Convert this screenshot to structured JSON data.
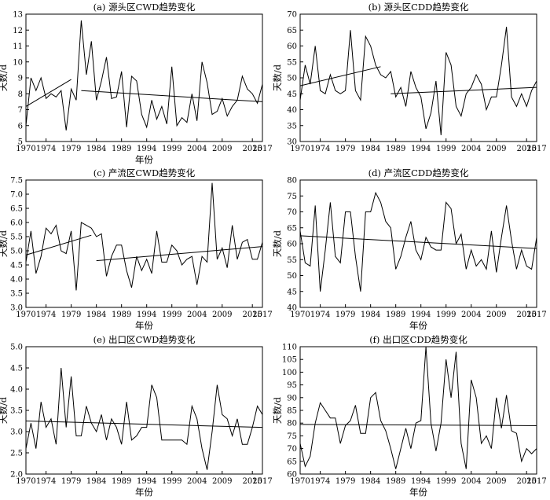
{
  "chart_data": [
    {
      "type": "line",
      "title": "(a) 源头区CWD趋势变化",
      "xlabel": "年份",
      "ylabel": "天数/d",
      "x_ticks": [
        "1970",
        "1974",
        "1979",
        "1984",
        "1989",
        "1994",
        "1999",
        "2004",
        "2009",
        "2015",
        "2017"
      ],
      "ylim": [
        5,
        13
      ],
      "y_ticks": [
        "5",
        "6",
        "7",
        "8",
        "9",
        "10",
        "11",
        "12",
        "13"
      ],
      "grid": false,
      "x": [
        1970,
        1971,
        1972,
        1973,
        1974,
        1975,
        1976,
        1977,
        1978,
        1979,
        1980,
        1981,
        1982,
        1983,
        1984,
        1985,
        1986,
        1987,
        1988,
        1989,
        1990,
        1991,
        1992,
        1993,
        1994,
        1995,
        1996,
        1997,
        1998,
        1999,
        2000,
        2001,
        2002,
        2003,
        2004,
        2005,
        2006,
        2007,
        2008,
        2009,
        2010,
        2011,
        2012,
        2013,
        2014,
        2015,
        2016,
        2017
      ],
      "values": [
        6.0,
        9.0,
        8.2,
        9.0,
        7.7,
        8.0,
        7.8,
        8.2,
        5.7,
        8.3,
        7.6,
        12.6,
        9.2,
        11.3,
        7.6,
        8.8,
        10.3,
        7.7,
        7.8,
        9.4,
        5.9,
        9.1,
        8.8,
        6.7,
        5.9,
        7.6,
        6.4,
        7.2,
        6.1,
        9.7,
        6.0,
        6.5,
        6.2,
        8.0,
        6.3,
        10.0,
        8.7,
        6.7,
        6.9,
        7.7,
        6.6,
        7.2,
        7.6,
        9.1,
        8.3,
        8.0,
        7.4,
        8.6
      ],
      "trend_lines": [
        {
          "x": [
            1970,
            1979
          ],
          "values": [
            7.2,
            8.9
          ]
        },
        {
          "x": [
            1981,
            2017
          ],
          "values": [
            8.2,
            7.5
          ]
        }
      ]
    },
    {
      "type": "line",
      "title": "(b) 源头区CDD趋势变化",
      "xlabel": "",
      "ylabel": "天数/d",
      "x_ticks": [
        "1970",
        "1974",
        "1979",
        "1984",
        "1989",
        "1994",
        "1999",
        "2004",
        "2009",
        "2015",
        "2017"
      ],
      "ylim": [
        30,
        70
      ],
      "y_ticks": [
        "30",
        "35",
        "40",
        "45",
        "50",
        "55",
        "60",
        "65",
        "70"
      ],
      "grid": false,
      "x": [
        1970,
        1971,
        1972,
        1973,
        1974,
        1975,
        1976,
        1977,
        1978,
        1979,
        1980,
        1981,
        1982,
        1983,
        1984,
        1985,
        1986,
        1987,
        1988,
        1989,
        1990,
        1991,
        1992,
        1993,
        1994,
        1995,
        1996,
        1997,
        1998,
        1999,
        2000,
        2001,
        2002,
        2003,
        2004,
        2005,
        2006,
        2007,
        2008,
        2009,
        2010,
        2011,
        2012,
        2013,
        2014,
        2015,
        2016,
        2017
      ],
      "values": [
        43,
        54,
        48,
        60,
        46,
        45,
        51,
        46,
        45,
        46,
        65,
        46,
        43,
        63,
        60,
        54,
        51,
        50,
        52,
        44,
        47,
        41,
        52,
        47,
        44,
        34,
        39,
        49,
        32,
        58,
        54,
        41,
        38,
        45,
        47,
        51,
        48,
        40,
        44,
        44,
        54,
        66,
        44,
        41,
        45,
        41,
        46,
        49
      ],
      "trend_lines": [
        {
          "x": [
            1970,
            1986
          ],
          "values": [
            47.5,
            53.5
          ]
        },
        {
          "x": [
            1988,
            2017
          ],
          "values": [
            45,
            47
          ]
        }
      ]
    },
    {
      "type": "line",
      "title": "(c) 产流区CWD趋势变化",
      "xlabel": "年份",
      "ylabel": "天数/d",
      "x_ticks": [
        "1970",
        "1974",
        "1979",
        "1984",
        "1989",
        "1994",
        "1999",
        "2004",
        "2009",
        "2015",
        "2017"
      ],
      "ylim": [
        3.0,
        7.5
      ],
      "y_ticks": [
        "3.0",
        "3.5",
        "4.0",
        "4.5",
        "5.0",
        "5.5",
        "6.0",
        "6.5",
        "7.0",
        "7.5"
      ],
      "grid": false,
      "x": [
        1970,
        1971,
        1972,
        1973,
        1974,
        1975,
        1976,
        1977,
        1978,
        1979,
        1980,
        1981,
        1982,
        1983,
        1984,
        1985,
        1986,
        1987,
        1988,
        1989,
        1990,
        1991,
        1992,
        1993,
        1994,
        1995,
        1996,
        1997,
        1998,
        1999,
        2000,
        2001,
        2002,
        2003,
        2004,
        2005,
        2006,
        2007,
        2008,
        2009,
        2010,
        2011,
        2012,
        2013,
        2014,
        2015,
        2016,
        2017
      ],
      "values": [
        4.6,
        5.7,
        4.2,
        4.8,
        5.8,
        5.6,
        5.9,
        5.0,
        4.9,
        5.7,
        3.6,
        6.0,
        5.9,
        5.8,
        5.5,
        5.6,
        4.1,
        4.8,
        5.2,
        5.2,
        4.3,
        3.7,
        4.8,
        4.3,
        4.7,
        4.2,
        5.7,
        4.6,
        4.6,
        5.2,
        5.0,
        4.5,
        4.7,
        4.8,
        3.8,
        4.8,
        4.6,
        7.4,
        4.7,
        5.1,
        4.4,
        5.9,
        4.7,
        5.3,
        5.4,
        4.7,
        4.7,
        5.3
      ],
      "trend_lines": [
        {
          "x": [
            1970,
            1983
          ],
          "values": [
            4.85,
            5.55
          ]
        },
        {
          "x": [
            1984,
            2017
          ],
          "values": [
            4.65,
            5.15
          ]
        }
      ]
    },
    {
      "type": "line",
      "title": "(d) 产流区CDD趋势变化",
      "xlabel": "年份",
      "ylabel": "天数/d",
      "x_ticks": [
        "1970",
        "1974",
        "1979",
        "1984",
        "1989",
        "1994",
        "1999",
        "2004",
        "2009",
        "2015",
        "2017"
      ],
      "ylim": [
        40,
        80
      ],
      "y_ticks": [
        "40",
        "45",
        "50",
        "55",
        "60",
        "65",
        "70",
        "75",
        "80"
      ],
      "grid": false,
      "x": [
        1970,
        1971,
        1972,
        1973,
        1974,
        1975,
        1976,
        1977,
        1978,
        1979,
        1980,
        1981,
        1982,
        1983,
        1984,
        1985,
        1986,
        1987,
        1988,
        1989,
        1990,
        1991,
        1992,
        1993,
        1994,
        1995,
        1996,
        1997,
        1998,
        1999,
        2000,
        2001,
        2002,
        2003,
        2004,
        2005,
        2006,
        2007,
        2008,
        2009,
        2010,
        2011,
        2012,
        2013,
        2014,
        2015,
        2016,
        2017
      ],
      "values": [
        64,
        54,
        53,
        72,
        45,
        58,
        73,
        56,
        54,
        70,
        70,
        56,
        45,
        70,
        70,
        76,
        73,
        67,
        65,
        52,
        56,
        62,
        67,
        58,
        55,
        62,
        59,
        58,
        58,
        73,
        71,
        60,
        63,
        52,
        58,
        53,
        55,
        52,
        64,
        51,
        62,
        72,
        61,
        52,
        58,
        53,
        52,
        62
      ],
      "trend_lines": [
        {
          "x": [
            1970,
            2017
          ],
          "values": [
            62.5,
            58.5
          ]
        }
      ]
    },
    {
      "type": "line",
      "title": "(e) 出口区CWD趋势变化",
      "xlabel": "年份",
      "ylabel": "天数/d",
      "x_ticks": [
        "1970",
        "1974",
        "1979",
        "1984",
        "1989",
        "1994",
        "1999",
        "2004",
        "2009",
        "2015",
        "2017"
      ],
      "ylim": [
        2.0,
        5.0
      ],
      "y_ticks": [
        "2.0",
        "2.5",
        "3.0",
        "3.5",
        "4.0",
        "4.5",
        "5.0"
      ],
      "grid": false,
      "x": [
        1970,
        1971,
        1972,
        1973,
        1974,
        1975,
        1976,
        1977,
        1978,
        1979,
        1980,
        1981,
        1982,
        1983,
        1984,
        1985,
        1986,
        1987,
        1988,
        1989,
        1990,
        1991,
        1992,
        1993,
        1994,
        1995,
        1996,
        1997,
        1998,
        1999,
        2000,
        2001,
        2002,
        2003,
        2004,
        2005,
        2006,
        2007,
        2008,
        2009,
        2010,
        2011,
        2012,
        2013,
        2014,
        2015,
        2016,
        2017
      ],
      "values": [
        2.6,
        3.2,
        2.6,
        3.7,
        3.1,
        3.3,
        2.7,
        4.5,
        3.1,
        4.3,
        2.9,
        2.9,
        3.6,
        3.2,
        3.0,
        3.4,
        2.8,
        3.3,
        3.1,
        2.7,
        3.7,
        2.8,
        2.9,
        3.1,
        3.1,
        4.1,
        3.8,
        2.8,
        2.8,
        2.8,
        2.8,
        2.8,
        2.7,
        3.6,
        3.3,
        2.6,
        2.1,
        3.0,
        4.1,
        3.4,
        3.3,
        2.9,
        3.3,
        2.7,
        2.7,
        3.1,
        3.6,
        3.4
      ],
      "trend_lines": [
        {
          "x": [
            1970,
            2017
          ],
          "values": [
            3.25,
            3.1
          ]
        }
      ]
    },
    {
      "type": "line",
      "title": "(f) 出口区CDD趋势变化",
      "xlabel": "年份",
      "ylabel": "天数/d",
      "x_ticks": [
        "1970",
        "1974",
        "1979",
        "1984",
        "1989",
        "1994",
        "1999",
        "2004",
        "2009",
        "2015",
        "2017"
      ],
      "ylim": [
        60,
        110
      ],
      "y_ticks": [
        "60",
        "65",
        "70",
        "75",
        "80",
        "85",
        "90",
        "95",
        "100",
        "105",
        "110"
      ],
      "grid": false,
      "x": [
        1970,
        1971,
        1972,
        1973,
        1974,
        1975,
        1976,
        1977,
        1978,
        1979,
        1980,
        1981,
        1982,
        1983,
        1984,
        1985,
        1986,
        1987,
        1988,
        1989,
        1990,
        1991,
        1992,
        1993,
        1994,
        1995,
        1996,
        1997,
        1998,
        1999,
        2000,
        2001,
        2002,
        2003,
        2004,
        2005,
        2006,
        2007,
        2008,
        2009,
        2010,
        2011,
        2012,
        2013,
        2014,
        2015,
        2016,
        2017
      ],
      "values": [
        72,
        63,
        67,
        80,
        88,
        85,
        82,
        82,
        72,
        79,
        81,
        87,
        76,
        76,
        90,
        92,
        81,
        77,
        70,
        62,
        70,
        78,
        70,
        80,
        81,
        110,
        80,
        69,
        80,
        105,
        90,
        108,
        72,
        62,
        97,
        90,
        72,
        75,
        70,
        90,
        78,
        91,
        77,
        76,
        65,
        70,
        68,
        70
      ],
      "trend_lines": [
        {
          "x": [
            1970,
            2017
          ],
          "values": [
            79.5,
            79
          ]
        }
      ]
    }
  ]
}
